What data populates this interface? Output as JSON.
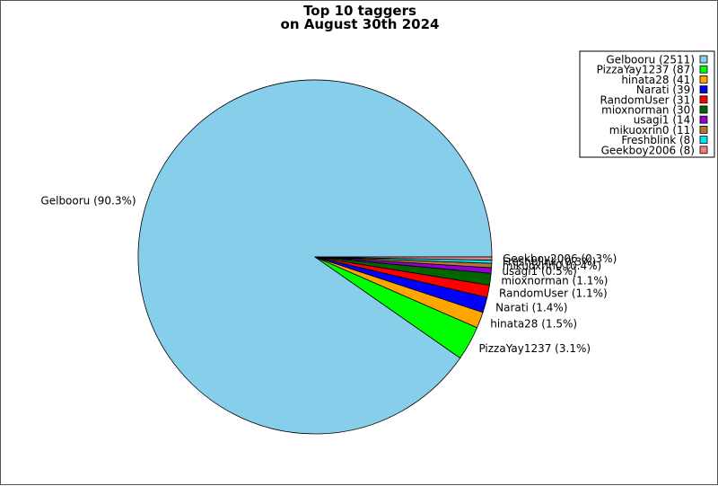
{
  "chart_data": {
    "type": "pie",
    "title": "Top 10 taggers",
    "subtitle": "on August 30th 2024",
    "legend_position": "top-right",
    "slices": [
      {
        "name": "Gelbooru",
        "count": 2511,
        "percent": 90.3,
        "color": "#87CEEB",
        "legend_label": "Gelbooru (2511)",
        "slice_label": "Gelbooru (90.3%)"
      },
      {
        "name": "PizzaYay1237",
        "count": 87,
        "percent": 3.1,
        "color": "#00FF00",
        "legend_label": "PizzaYay1237 (87)",
        "slice_label": "PizzaYay1237 (3.1%)"
      },
      {
        "name": "hinata28",
        "count": 41,
        "percent": 1.5,
        "color": "#FFA500",
        "legend_label": "hinata28 (41)",
        "slice_label": "hinata28 (1.5%)"
      },
      {
        "name": "Narati",
        "count": 39,
        "percent": 1.4,
        "color": "#0000FF",
        "legend_label": "Narati (39)",
        "slice_label": "Narati (1.4%)"
      },
      {
        "name": "RandomUser",
        "count": 31,
        "percent": 1.1,
        "color": "#FF0000",
        "legend_label": "RandomUser (31)",
        "slice_label": "RandomUser (1.1%)"
      },
      {
        "name": "mioxnorman",
        "count": 30,
        "percent": 1.1,
        "color": "#006400",
        "legend_label": "mioxnorman (30)",
        "slice_label": "mioxnorman (1.1%)"
      },
      {
        "name": "usagi1",
        "count": 14,
        "percent": 0.5,
        "color": "#9400D3",
        "legend_label": "usagi1 (14)",
        "slice_label": "usagi1 (0.5%)"
      },
      {
        "name": "mikuoxrin0",
        "count": 11,
        "percent": 0.4,
        "color": "#B87333",
        "legend_label": "mikuoxrin0 (11)",
        "slice_label": "mikuoxrin0 (0.4%)"
      },
      {
        "name": "Freshblink",
        "count": 8,
        "percent": 0.3,
        "color": "#00E5EE",
        "legend_label": "Freshblink (8)",
        "slice_label": "Freshblink (0.3%)"
      },
      {
        "name": "Geekboy2006",
        "count": 8,
        "percent": 0.3,
        "color": "#F08080",
        "legend_label": "Geekboy2006 (8)",
        "slice_label": "Geekboy2006 (0.3%)"
      }
    ]
  }
}
